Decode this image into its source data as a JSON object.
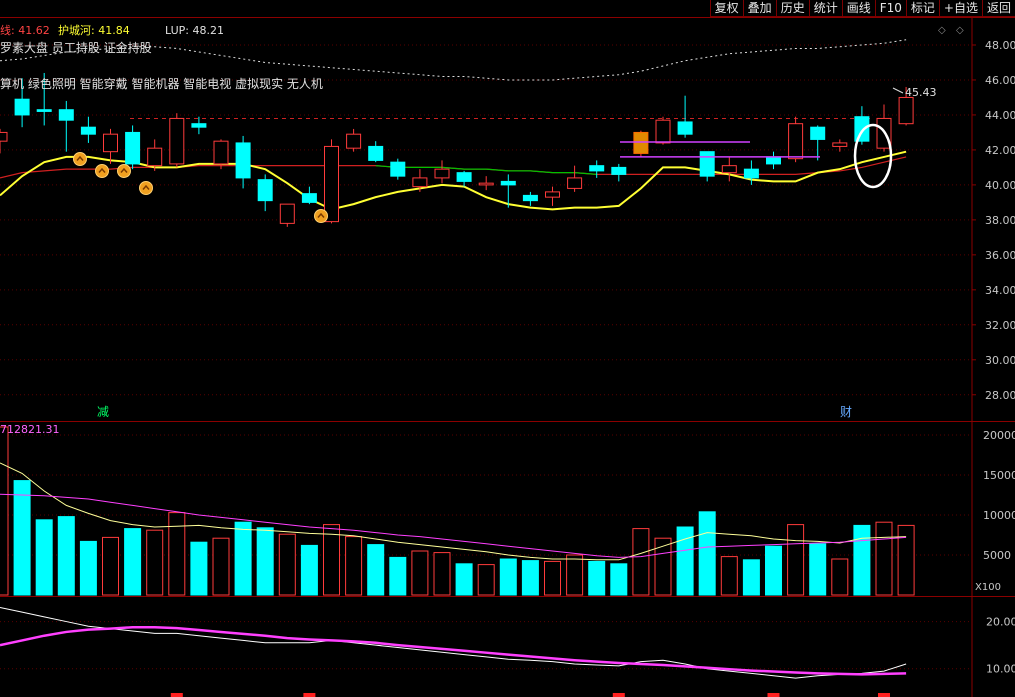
{
  "toolbar": {
    "buttons": [
      "复权",
      "叠加",
      "历史",
      "统计",
      "画线",
      "F10",
      "标记",
      "+自选",
      "返回"
    ]
  },
  "indicators": {
    "item1": "线: 41.62",
    "item2": "护城河: 41.84",
    "item3": "LUP: 48.21"
  },
  "concepts": {
    "line1": "罗素大盘 员工持股 证金持股",
    "line2": "算机 绿色照明 智能穿戴 智能机器 智能电视 虚拟现实 无人机"
  },
  "markers": {
    "reduce": "减",
    "finance": "财",
    "last_price": "45.43"
  },
  "volume_header": "712821.31",
  "unit_label": "X100",
  "colors": {
    "up": "#ff3b3b",
    "down": "#00ffff",
    "ma_yellow": "#ffff33",
    "ma_red": "#d02020",
    "ma_green": "#00c000",
    "volume_ma_pink": "#ff40ff",
    "axis_red": "#8b0000",
    "text_gray": "#c8c8c8"
  },
  "chart_data": {
    "type": "candlestick",
    "price_ticks": [
      "48.00",
      "46.00",
      "44.00",
      "42.00",
      "40.00",
      "38.00",
      "36.00",
      "34.00",
      "32.00",
      "30.00",
      "28.00"
    ],
    "price_ylim": [
      26.5,
      49.2
    ],
    "volume_ticks": [
      "20000",
      "15000",
      "10000",
      "5000"
    ],
    "volume_ylim": [
      0,
      21000
    ],
    "sub_ticks": [
      "20.00",
      "10.00"
    ],
    "sub_ylim": [
      4,
      25
    ],
    "candles": [
      {
        "o": 42.5,
        "h": 43.2,
        "l": 41.8,
        "c": 43.0,
        "up": true
      },
      {
        "o": 44.9,
        "h": 46.1,
        "l": 43.3,
        "c": 44.0,
        "up": false
      },
      {
        "o": 44.3,
        "h": 46.4,
        "l": 43.4,
        "c": 44.2,
        "up": false
      },
      {
        "o": 44.3,
        "h": 44.8,
        "l": 41.9,
        "c": 43.7,
        "up": false
      },
      {
        "o": 43.3,
        "h": 43.9,
        "l": 42.4,
        "c": 42.9,
        "up": false
      },
      {
        "o": 41.9,
        "h": 43.2,
        "l": 41.2,
        "c": 42.9,
        "up": true
      },
      {
        "o": 43.0,
        "h": 43.4,
        "l": 40.9,
        "c": 41.2,
        "up": false
      },
      {
        "o": 41.1,
        "h": 42.6,
        "l": 40.8,
        "c": 42.1,
        "up": true
      },
      {
        "o": 41.2,
        "h": 44.1,
        "l": 41.0,
        "c": 43.8,
        "up": true
      },
      {
        "o": 43.3,
        "h": 43.9,
        "l": 42.9,
        "c": 43.5,
        "up": false
      },
      {
        "o": 41.2,
        "h": 42.6,
        "l": 40.9,
        "c": 42.5,
        "up": true
      },
      {
        "o": 42.4,
        "h": 42.8,
        "l": 39.8,
        "c": 40.4,
        "up": false
      },
      {
        "o": 40.3,
        "h": 40.6,
        "l": 38.5,
        "c": 39.1,
        "up": false
      },
      {
        "o": 37.8,
        "h": 38.9,
        "l": 37.6,
        "c": 38.9,
        "up": true
      },
      {
        "o": 39.5,
        "h": 39.9,
        "l": 38.9,
        "c": 39.0,
        "up": false
      },
      {
        "o": 37.9,
        "h": 42.6,
        "l": 37.8,
        "c": 42.2,
        "up": true
      },
      {
        "o": 42.1,
        "h": 43.2,
        "l": 41.9,
        "c": 42.9,
        "up": true
      },
      {
        "o": 42.2,
        "h": 42.5,
        "l": 41.3,
        "c": 41.4,
        "up": false
      },
      {
        "o": 41.3,
        "h": 41.5,
        "l": 40.3,
        "c": 40.5,
        "up": false
      },
      {
        "o": 39.9,
        "h": 40.9,
        "l": 39.6,
        "c": 40.4,
        "up": true
      },
      {
        "o": 40.4,
        "h": 41.4,
        "l": 40.1,
        "c": 40.9,
        "up": true
      },
      {
        "o": 40.7,
        "h": 40.8,
        "l": 39.9,
        "c": 40.2,
        "up": false
      },
      {
        "o": 40.0,
        "h": 40.5,
        "l": 39.7,
        "c": 40.1,
        "up": true
      },
      {
        "o": 40.2,
        "h": 40.6,
        "l": 38.7,
        "c": 40.0,
        "up": false
      },
      {
        "o": 39.4,
        "h": 39.6,
        "l": 38.8,
        "c": 39.1,
        "up": false
      },
      {
        "o": 39.3,
        "h": 39.9,
        "l": 38.8,
        "c": 39.6,
        "up": true
      },
      {
        "o": 39.8,
        "h": 41.1,
        "l": 39.6,
        "c": 40.4,
        "up": true
      },
      {
        "o": 40.8,
        "h": 41.4,
        "l": 40.4,
        "c": 41.1,
        "up": false
      },
      {
        "o": 41.0,
        "h": 41.2,
        "l": 40.2,
        "c": 40.6,
        "up": false
      },
      {
        "o": 41.8,
        "h": 43.1,
        "l": 41.6,
        "c": 43.0,
        "up": true,
        "gold": true
      },
      {
        "o": 42.4,
        "h": 43.9,
        "l": 42.3,
        "c": 43.7,
        "up": true
      },
      {
        "o": 43.6,
        "h": 45.1,
        "l": 42.7,
        "c": 42.9,
        "up": false
      },
      {
        "o": 41.9,
        "h": 41.9,
        "l": 40.2,
        "c": 40.5,
        "up": false
      },
      {
        "o": 40.7,
        "h": 41.6,
        "l": 40.2,
        "c": 41.1,
        "up": true
      },
      {
        "o": 40.9,
        "h": 41.4,
        "l": 40.0,
        "c": 40.4,
        "up": false
      },
      {
        "o": 41.6,
        "h": 41.9,
        "l": 40.9,
        "c": 41.2,
        "up": false
      },
      {
        "o": 41.5,
        "h": 43.9,
        "l": 41.3,
        "c": 43.5,
        "up": true
      },
      {
        "o": 43.3,
        "h": 43.4,
        "l": 41.4,
        "c": 42.6,
        "up": false
      },
      {
        "o": 42.2,
        "h": 42.6,
        "l": 41.9,
        "c": 42.4,
        "up": true
      },
      {
        "o": 43.9,
        "h": 44.5,
        "l": 42.3,
        "c": 42.5,
        "up": false
      },
      {
        "o": 42.1,
        "h": 44.6,
        "l": 41.9,
        "c": 43.8,
        "up": true
      },
      {
        "o": 43.5,
        "h": 45.6,
        "l": 43.4,
        "c": 45.0,
        "up": true
      }
    ],
    "volume": [
      {
        "v": 21000,
        "up": true
      },
      {
        "v": 14300,
        "up": false
      },
      {
        "v": 9400,
        "up": false
      },
      {
        "v": 9800,
        "up": false
      },
      {
        "v": 6700,
        "up": false
      },
      {
        "v": 7200,
        "up": true
      },
      {
        "v": 8300,
        "up": false
      },
      {
        "v": 8100,
        "up": true
      },
      {
        "v": 10300,
        "up": true
      },
      {
        "v": 6600,
        "up": false
      },
      {
        "v": 7100,
        "up": true
      },
      {
        "v": 9100,
        "up": false
      },
      {
        "v": 8400,
        "up": false
      },
      {
        "v": 7600,
        "up": true
      },
      {
        "v": 6200,
        "up": false
      },
      {
        "v": 8800,
        "up": true
      },
      {
        "v": 7300,
        "up": true
      },
      {
        "v": 6300,
        "up": false
      },
      {
        "v": 4700,
        "up": false
      },
      {
        "v": 5500,
        "up": true
      },
      {
        "v": 5300,
        "up": true
      },
      {
        "v": 3900,
        "up": false
      },
      {
        "v": 3800,
        "up": true
      },
      {
        "v": 4500,
        "up": false
      },
      {
        "v": 4300,
        "up": false
      },
      {
        "v": 4200,
        "up": true
      },
      {
        "v": 5000,
        "up": true
      },
      {
        "v": 4200,
        "up": false
      },
      {
        "v": 3900,
        "up": false
      },
      {
        "v": 8300,
        "up": true
      },
      {
        "v": 7100,
        "up": true
      },
      {
        "v": 8500,
        "up": false
      },
      {
        "v": 10400,
        "up": false
      },
      {
        "v": 4800,
        "up": true
      },
      {
        "v": 4400,
        "up": false
      },
      {
        "v": 6100,
        "up": false
      },
      {
        "v": 8800,
        "up": true
      },
      {
        "v": 6400,
        "up": false
      },
      {
        "v": 4500,
        "up": true
      },
      {
        "v": 8700,
        "up": false
      },
      {
        "v": 9100,
        "up": true
      },
      {
        "v": 8700,
        "up": true
      }
    ],
    "ma_yellow": [
      39.4,
      40.5,
      41.3,
      41.6,
      41.6,
      41.4,
      41.3,
      41.0,
      41.0,
      41.2,
      41.2,
      41.2,
      40.9,
      40.1,
      39.2,
      38.6,
      38.9,
      39.3,
      39.6,
      39.8,
      40.0,
      39.9,
      39.3,
      38.9,
      38.7,
      38.6,
      38.7,
      38.7,
      38.8,
      39.8,
      41.0,
      41.0,
      40.8,
      40.6,
      40.3,
      40.2,
      40.2,
      40.7,
      40.9,
      41.3,
      41.6,
      41.9
    ],
    "ma_red": [
      40.4,
      40.7,
      40.8,
      40.9,
      40.9,
      40.9,
      41.0,
      41.0,
      41.0,
      41.1,
      41.1,
      41.1,
      41.1,
      41.1,
      41.1,
      41.1,
      41.1,
      41.1,
      41.0,
      41.0,
      41.0,
      40.9,
      40.9,
      40.8,
      40.8,
      40.7,
      40.7,
      40.6,
      40.6,
      40.6,
      40.6,
      40.6,
      40.6,
      40.6,
      40.6,
      40.6,
      40.6,
      40.7,
      40.8,
      41.0,
      41.3,
      41.6
    ],
    "upper_band": [
      47.1,
      47.2,
      47.4,
      47.6,
      47.7,
      47.8,
      47.9,
      47.9,
      47.8,
      47.6,
      47.4,
      47.2,
      47.0,
      46.9,
      46.8,
      46.7,
      46.6,
      46.5,
      46.4,
      46.3,
      46.2,
      46.2,
      46.1,
      46.0,
      46.0,
      46.0,
      46.1,
      46.2,
      46.3,
      46.5,
      46.8,
      47.1,
      47.3,
      47.5,
      47.6,
      47.7,
      47.8,
      47.8,
      47.9,
      48.0,
      48.1,
      48.3
    ],
    "vol_ma_white": [
      16500,
      15200,
      13000,
      11200,
      10200,
      9300,
      8800,
      8500,
      8600,
      8700,
      8400,
      8200,
      8100,
      7900,
      7700,
      7600,
      7400,
      7000,
      6600,
      6300,
      6000,
      5700,
      5400,
      5000,
      4700,
      4500,
      4500,
      4400,
      4400,
      5200,
      6100,
      7000,
      7800,
      7600,
      7400,
      7000,
      6800,
      6700,
      6500,
      7100,
      7200,
      7300
    ],
    "vol_ma_pink": [
      12600,
      12500,
      12400,
      12200,
      12000,
      11600,
      11200,
      10800,
      10400,
      10000,
      9700,
      9400,
      9100,
      8800,
      8500,
      8300,
      8100,
      7800,
      7500,
      7300,
      7000,
      6700,
      6400,
      6100,
      5800,
      5500,
      5200,
      4900,
      4700,
      4800,
      5200,
      5600,
      6000,
      6100,
      6200,
      6300,
      6400,
      6500,
      6600,
      6800,
      7000,
      7200
    ],
    "sub_white": [
      23,
      22,
      21,
      20,
      19,
      18.5,
      18,
      17.5,
      17.5,
      17,
      16.5,
      16,
      15.5,
      15.5,
      15.5,
      16,
      15.5,
      15,
      14.5,
      14,
      13.5,
      13,
      12.5,
      12,
      11.8,
      11.5,
      11,
      10.8,
      10.6,
      11.5,
      11.8,
      11,
      10,
      9.5,
      9,
      8.5,
      8,
      8.5,
      8.8,
      9,
      9.5,
      11
    ],
    "sub_pink": [
      15,
      16,
      17,
      17.8,
      18.3,
      18.5,
      18.8,
      18.8,
      18.6,
      18.2,
      17.8,
      17.4,
      17,
      16.5,
      16.2,
      16,
      15.8,
      15.5,
      15,
      14.6,
      14.2,
      13.8,
      13.4,
      13,
      12.6,
      12.2,
      11.8,
      11.5,
      11.2,
      11,
      10.8,
      10.5,
      10.2,
      9.9,
      9.6,
      9.4,
      9.2,
      9,
      8.9,
      8.8,
      8.9,
      9
    ]
  }
}
